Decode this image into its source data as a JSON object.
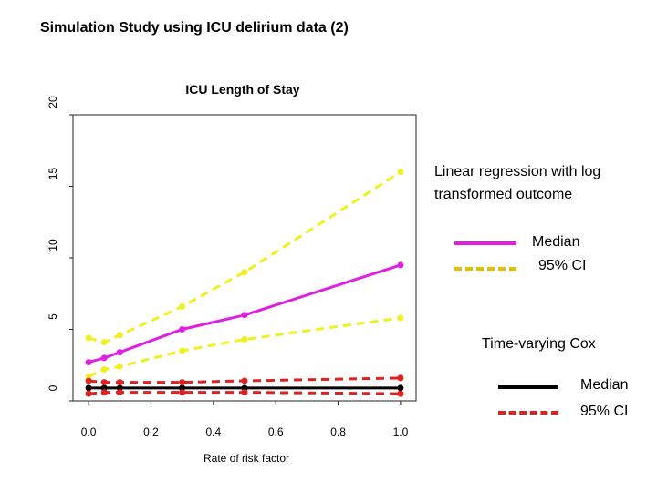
{
  "slide": {
    "title": "Simulation Study using ICU delirium data (2)"
  },
  "chart_data": {
    "type": "line",
    "title": "ICU Length of Stay",
    "xlabel": "Rate of risk factor",
    "ylabel": "",
    "xlim": [
      -0.05,
      1.05
    ],
    "ylim": [
      0,
      20
    ],
    "xticks": [
      "0.0",
      "0.2",
      "0.4",
      "0.6",
      "0.8",
      "1.0"
    ],
    "yticks": [
      "0",
      "5",
      "10",
      "15",
      "20"
    ],
    "x": [
      0,
      0.05,
      0.1,
      0.3,
      0.5,
      1.0
    ],
    "series": [
      {
        "group": "Linear regression with log transformed outcome",
        "name": "Median",
        "color": "#e020e0",
        "dash": "solid",
        "values": [
          2.7,
          3.0,
          3.4,
          5.0,
          6.0,
          9.5
        ]
      },
      {
        "group": "Linear regression with log transformed outcome",
        "name": "95% CI (upper)",
        "color": "#f0f020",
        "dash": "dashed",
        "values": [
          4.4,
          4.1,
          4.6,
          6.6,
          9.0,
          16.0
        ]
      },
      {
        "group": "Linear regression with log transformed outcome",
        "name": "95% CI (lower)",
        "color": "#f0f020",
        "dash": "dashed",
        "values": [
          1.7,
          2.2,
          2.4,
          3.5,
          4.3,
          5.8
        ]
      },
      {
        "group": "Time-varying Cox",
        "name": "Median",
        "color": "#000000",
        "dash": "solid",
        "values": [
          0.9,
          0.9,
          0.9,
          0.9,
          0.9,
          0.9
        ]
      },
      {
        "group": "Time-varying Cox",
        "name": "95% CI (upper)",
        "color": "#dd2222",
        "dash": "dashed",
        "values": [
          1.4,
          1.3,
          1.3,
          1.3,
          1.4,
          1.6
        ]
      },
      {
        "group": "Time-varying Cox",
        "name": "95% CI (lower)",
        "color": "#dd2222",
        "dash": "dashed",
        "values": [
          0.5,
          0.6,
          0.6,
          0.6,
          0.6,
          0.5
        ]
      }
    ],
    "legend": {
      "groups": [
        {
          "title": "Linear regression with log transformed outcome",
          "title_lines": [
            "Linear regression with log",
            "transformed outcome"
          ],
          "entries": [
            {
              "label": "Median",
              "color": "#e020e0",
              "dash": "solid"
            },
            {
              "label": "95% CI",
              "color": "#e0c000",
              "dash": "dashed"
            }
          ]
        },
        {
          "title": "Time-varying Cox",
          "title_lines": [
            "Time-varying Cox"
          ],
          "entries": [
            {
              "label": "Median",
              "color": "#000000",
              "dash": "solid"
            },
            {
              "label": "95% CI",
              "color": "#dd2222",
              "dash": "dashed"
            }
          ]
        }
      ],
      "placement": "right"
    }
  }
}
